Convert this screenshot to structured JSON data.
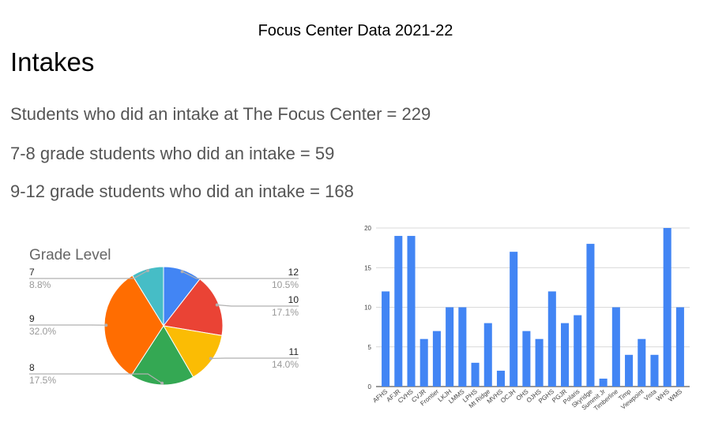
{
  "header": {
    "title": "Focus Center Data 2021-22"
  },
  "section": {
    "title": "Intakes"
  },
  "stats": [
    "Students who did an intake at The Focus Center = 229",
    "7-8 grade students who did an intake = 59",
    "9-12 grade students who did an intake = 168"
  ],
  "chart_data": [
    {
      "type": "pie",
      "title": "Grade Level",
      "slices": [
        {
          "label": "12",
          "percent": 10.5,
          "pct_text": "10.5%",
          "color": "#4285F4"
        },
        {
          "label": "10",
          "percent": 17.1,
          "pct_text": "17.1%",
          "color": "#EA4335"
        },
        {
          "label": "11",
          "percent": 14.0,
          "pct_text": "14.0%",
          "color": "#FBBC04"
        },
        {
          "label": "8",
          "percent": 17.5,
          "pct_text": "17.5%",
          "color": "#34A853"
        },
        {
          "label": "9",
          "percent": 32.0,
          "pct_text": "32.0%",
          "color": "#FF6D01"
        },
        {
          "label": "7",
          "percent": 8.8,
          "pct_text": "8.8%",
          "color": "#46BDC6"
        }
      ]
    },
    {
      "type": "bar",
      "title": "",
      "categories": [
        "AFHS",
        "AFJR",
        "CVHS",
        "CVJR",
        "Frontier",
        "LKJH",
        "LMMS",
        "LPHS",
        "Mt Ridge",
        "MVHS",
        "OCJH",
        "OHS",
        "OJHS",
        "PGHS",
        "PGJR",
        "Polaris",
        "Skyridge",
        "Summit Jr",
        "Timberline",
        "Timp",
        "Viewpoint",
        "Vista",
        "WHS",
        "WMS"
      ],
      "values": [
        12,
        19,
        19,
        6,
        7,
        10,
        10,
        3,
        8,
        2,
        17,
        7,
        6,
        12,
        8,
        9,
        18,
        1,
        10,
        4,
        6,
        4,
        20,
        10
      ],
      "yticks": [
        0,
        5,
        10,
        15,
        20
      ],
      "ylim": [
        0,
        20
      ],
      "color": "#4285F4",
      "grid": true,
      "xlabel": "",
      "ylabel": ""
    }
  ]
}
